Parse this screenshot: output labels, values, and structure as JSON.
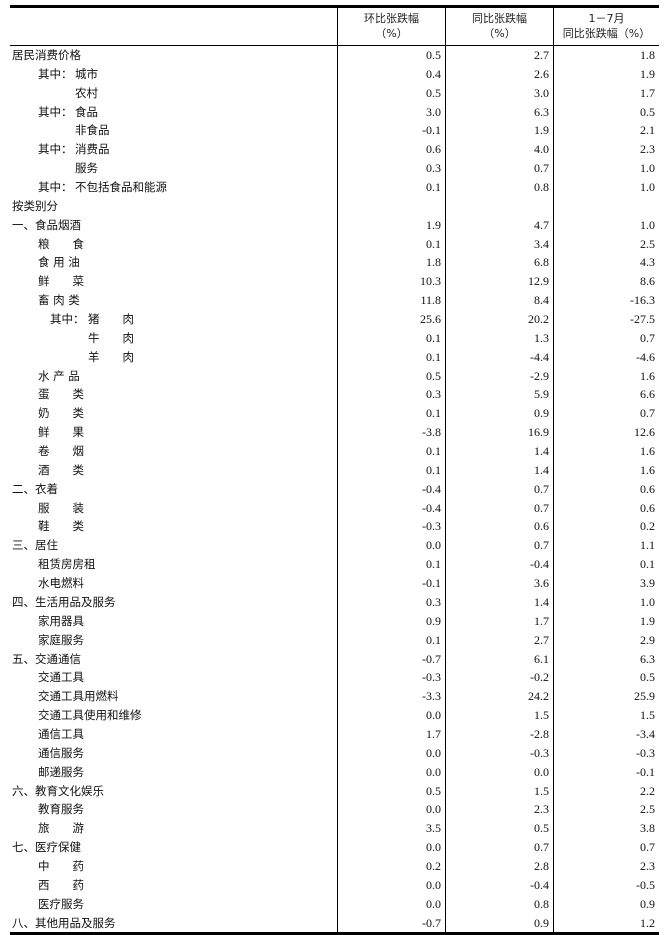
{
  "headers": {
    "col1": [
      "环比张跌幅",
      "（%）"
    ],
    "col2": [
      "同比张跌幅",
      "（%）"
    ],
    "col3": [
      "1－7月",
      "同比张跌幅（%）"
    ]
  },
  "rows": [
    {
      "label": "居民消费价格",
      "level": 0,
      "mom": "0.5",
      "yoy": "2.7",
      "ytd": "1.8"
    },
    {
      "prefix": "其中：",
      "label": "城市",
      "level": 1,
      "mom": "0.4",
      "yoy": "2.6",
      "ytd": "1.9"
    },
    {
      "label": "农村",
      "level": 1,
      "cont": true,
      "mom": "0.5",
      "yoy": "3.0",
      "ytd": "1.7"
    },
    {
      "prefix": "其中：",
      "label": "食品",
      "level": 1,
      "mom": "3.0",
      "yoy": "6.3",
      "ytd": "0.5"
    },
    {
      "label": "非食品",
      "level": 1,
      "cont": true,
      "mom": "-0.1",
      "yoy": "1.9",
      "ytd": "2.1"
    },
    {
      "prefix": "其中：",
      "label": "消费品",
      "level": 1,
      "mom": "0.6",
      "yoy": "4.0",
      "ytd": "2.3"
    },
    {
      "label": "服务",
      "level": 1,
      "cont": true,
      "mom": "0.3",
      "yoy": "0.7",
      "ytd": "1.0"
    },
    {
      "prefix": "其中：",
      "label": "不包括食品和能源",
      "level": 1,
      "mom": "0.1",
      "yoy": "0.8",
      "ytd": "1.0"
    },
    {
      "label": "按类别分",
      "level": 0,
      "mom": "",
      "yoy": "",
      "ytd": ""
    },
    {
      "label": "一、食品烟酒",
      "level": 0,
      "mom": "1.9",
      "yoy": "4.7",
      "ytd": "1.0"
    },
    {
      "label": "粮　　食",
      "level": 1,
      "mom": "0.1",
      "yoy": "3.4",
      "ytd": "2.5"
    },
    {
      "label": "食 用 油",
      "level": 1,
      "mom": "1.8",
      "yoy": "6.8",
      "ytd": "4.3"
    },
    {
      "label": "鲜　　菜",
      "level": 1,
      "mom": "10.3",
      "yoy": "12.9",
      "ytd": "8.6"
    },
    {
      "label": "畜 肉 类",
      "level": 1,
      "mom": "11.8",
      "yoy": "8.4",
      "ytd": "-16.3"
    },
    {
      "prefix": "其中：",
      "label": "猪　　肉",
      "level": 2,
      "mom": "25.6",
      "yoy": "20.2",
      "ytd": "-27.5"
    },
    {
      "label": "牛　　肉",
      "level": 2,
      "cont": true,
      "mom": "0.1",
      "yoy": "1.3",
      "ytd": "0.7"
    },
    {
      "label": "羊　　肉",
      "level": 2,
      "cont": true,
      "mom": "0.1",
      "yoy": "-4.4",
      "ytd": "-4.6"
    },
    {
      "label": "水 产 品",
      "level": 1,
      "mom": "0.5",
      "yoy": "-2.9",
      "ytd": "1.6"
    },
    {
      "label": "蛋　　类",
      "level": 1,
      "mom": "0.3",
      "yoy": "5.9",
      "ytd": "6.6"
    },
    {
      "label": "奶　　类",
      "level": 1,
      "mom": "0.1",
      "yoy": "0.9",
      "ytd": "0.7"
    },
    {
      "label": "鲜　　果",
      "level": 1,
      "mom": "-3.8",
      "yoy": "16.9",
      "ytd": "12.6"
    },
    {
      "label": "卷　　烟",
      "level": 1,
      "mom": "0.1",
      "yoy": "1.4",
      "ytd": "1.6"
    },
    {
      "label": "酒　　类",
      "level": 1,
      "mom": "0.1",
      "yoy": "1.4",
      "ytd": "1.6"
    },
    {
      "label": "二、衣着",
      "level": 0,
      "mom": "-0.4",
      "yoy": "0.7",
      "ytd": "0.6"
    },
    {
      "label": "服　　装",
      "level": 1,
      "mom": "-0.4",
      "yoy": "0.7",
      "ytd": "0.6"
    },
    {
      "label": "鞋　　类",
      "level": 1,
      "mom": "-0.3",
      "yoy": "0.6",
      "ytd": "0.2"
    },
    {
      "label": "三、居住",
      "level": 0,
      "mom": "0.0",
      "yoy": "0.7",
      "ytd": "1.1"
    },
    {
      "label": "租赁房房租",
      "level": 1,
      "mom": "0.1",
      "yoy": "-0.4",
      "ytd": "0.1"
    },
    {
      "label": "水电燃料",
      "level": 1,
      "mom": "-0.1",
      "yoy": "3.6",
      "ytd": "3.9"
    },
    {
      "label": "四、生活用品及服务",
      "level": 0,
      "mom": "0.3",
      "yoy": "1.4",
      "ytd": "1.0"
    },
    {
      "label": "家用器具",
      "level": 1,
      "mom": "0.9",
      "yoy": "1.7",
      "ytd": "1.9"
    },
    {
      "label": "家庭服务",
      "level": 1,
      "mom": "0.1",
      "yoy": "2.7",
      "ytd": "2.9"
    },
    {
      "label": "五、交通通信",
      "level": 0,
      "mom": "-0.7",
      "yoy": "6.1",
      "ytd": "6.3"
    },
    {
      "label": "交通工具",
      "level": 1,
      "mom": "-0.3",
      "yoy": "-0.2",
      "ytd": "0.5"
    },
    {
      "label": "交通工具用燃料",
      "level": 1,
      "mom": "-3.3",
      "yoy": "24.2",
      "ytd": "25.9"
    },
    {
      "label": "交通工具使用和维修",
      "level": 1,
      "mom": "0.0",
      "yoy": "1.5",
      "ytd": "1.5"
    },
    {
      "label": "通信工具",
      "level": 1,
      "mom": "1.7",
      "yoy": "-2.8",
      "ytd": "-3.4"
    },
    {
      "label": "通信服务",
      "level": 1,
      "mom": "0.0",
      "yoy": "-0.3",
      "ytd": "-0.3"
    },
    {
      "label": "邮递服务",
      "level": 1,
      "mom": "0.0",
      "yoy": "0.0",
      "ytd": "-0.1"
    },
    {
      "label": "六、教育文化娱乐",
      "level": 0,
      "mom": "0.5",
      "yoy": "1.5",
      "ytd": "2.2"
    },
    {
      "label": "教育服务",
      "level": 1,
      "mom": "0.0",
      "yoy": "2.3",
      "ytd": "2.5"
    },
    {
      "label": "旅　　游",
      "level": 1,
      "mom": "3.5",
      "yoy": "0.5",
      "ytd": "3.8"
    },
    {
      "label": "七、医疗保健",
      "level": 0,
      "mom": "0.0",
      "yoy": "0.7",
      "ytd": "0.7"
    },
    {
      "label": "中　　药",
      "level": 1,
      "mom": "0.2",
      "yoy": "2.8",
      "ytd": "2.3"
    },
    {
      "label": "西　　药",
      "level": 1,
      "mom": "0.0",
      "yoy": "-0.4",
      "ytd": "-0.5"
    },
    {
      "label": "医疗服务",
      "level": 1,
      "mom": "0.0",
      "yoy": "0.8",
      "ytd": "0.9"
    },
    {
      "label": "八、其他用品及服务",
      "level": 0,
      "mom": "-0.7",
      "yoy": "0.9",
      "ytd": "1.2"
    }
  ]
}
